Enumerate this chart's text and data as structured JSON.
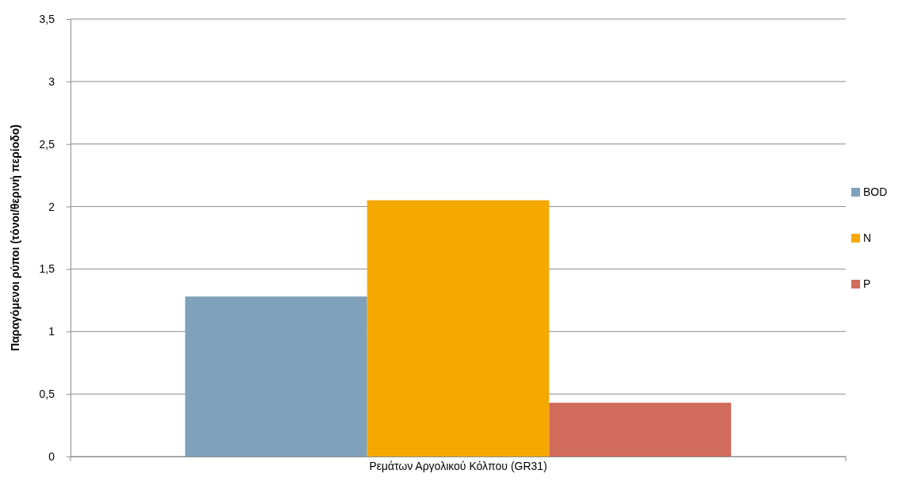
{
  "chart_data": {
    "type": "bar",
    "ylabel": "Παραγόμενοι ρύποι (τόνοι/θερινή περίοδο)",
    "categories": [
      "Ρεμάτων Αργολικού Κόλπου (GR31)"
    ],
    "series": [
      {
        "name": "BOD",
        "color": "#7fa1ba",
        "values": [
          1.28
        ]
      },
      {
        "name": "N",
        "color": "#f5a800",
        "values": [
          2.05
        ]
      },
      {
        "name": "P",
        "color": "#d16b5b",
        "values": [
          0.43
        ]
      }
    ],
    "ylim": [
      0,
      3.5
    ],
    "yticks": [
      0,
      {
        "value": 0.5,
        "label": "0,5"
      },
      1,
      {
        "value": 1.5,
        "label": "1,5"
      },
      2,
      {
        "value": 2.5,
        "label": "2,5"
      },
      3,
      {
        "value": 3.5,
        "label": "3,5"
      }
    ],
    "grid": "y",
    "legend": "right"
  }
}
